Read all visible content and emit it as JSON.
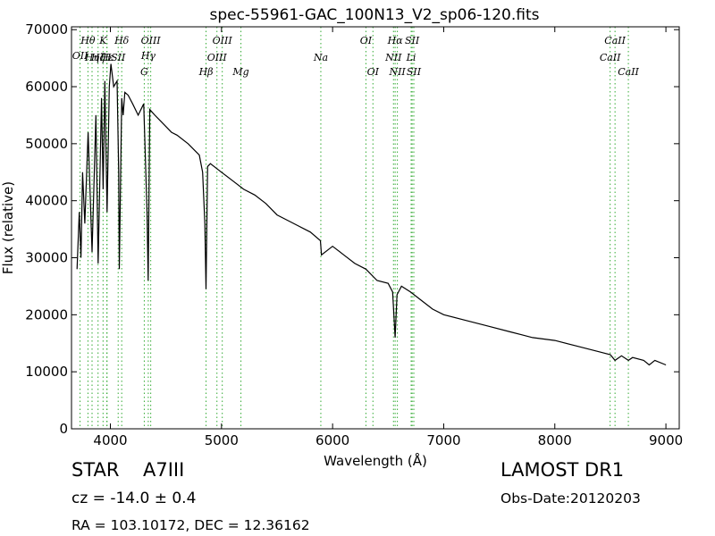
{
  "chart_data": {
    "type": "line",
    "title": "spec-55961-GAC_100N13_V2_sp06-120.fits",
    "xlabel": "Wavelength (Å)",
    "ylabel": "Flux (relative)",
    "xlim": [
      3650,
      9120
    ],
    "ylim": [
      0,
      70500
    ],
    "xticks": [
      4000,
      5000,
      6000,
      7000,
      8000,
      9000
    ],
    "yticks": [
      0,
      10000,
      20000,
      30000,
      40000,
      50000,
      60000,
      70000
    ],
    "grid": false,
    "line_color": "#000000",
    "marker_color": "#33aa33",
    "series": [
      {
        "x": [
          3700,
          3720,
          3735,
          3750,
          3770,
          3800,
          3835,
          3870,
          3890,
          3920,
          3935,
          3950,
          3970,
          3990,
          4005,
          4030,
          4060,
          4075,
          4080,
          4102,
          4115,
          4130,
          4160,
          4200,
          4250,
          4300,
          4330,
          4340,
          4355,
          4400,
          4450,
          4500,
          4550,
          4600,
          4700,
          4800,
          4830,
          4850,
          4861,
          4875,
          4900,
          5000,
          5100,
          5200,
          5300,
          5400,
          5500,
          5600,
          5700,
          5800,
          5890,
          5900,
          6000,
          6100,
          6200,
          6300,
          6400,
          6500,
          6540,
          6563,
          6580,
          6620,
          6700,
          6800,
          6900,
          7000,
          7200,
          7400,
          7600,
          7700,
          7800,
          8000,
          8200,
          8400,
          8500,
          8542,
          8600,
          8662,
          8700,
          8800,
          8850,
          8900,
          9000
        ],
        "y": [
          28000,
          38000,
          30000,
          45000,
          36000,
          52000,
          31000,
          55000,
          29000,
          58000,
          42000,
          61000,
          38000,
          60000,
          64000,
          60000,
          61000,
          45000,
          28000,
          58000,
          55000,
          59000,
          58500,
          57000,
          55000,
          57000,
          38000,
          26000,
          56000,
          55000,
          54000,
          53000,
          52000,
          51500,
          50000,
          48000,
          45000,
          36000,
          24500,
          46000,
          46500,
          45000,
          43500,
          42000,
          41000,
          39500,
          37500,
          36500,
          35500,
          34500,
          33000,
          30500,
          32000,
          30500,
          29000,
          28000,
          26000,
          25500,
          24000,
          16000,
          23500,
          25000,
          24000,
          22500,
          21000,
          20000,
          19000,
          18000,
          17000,
          16500,
          16000,
          15500,
          14500,
          13500,
          13000,
          12000,
          12800,
          12000,
          12500,
          12000,
          11200,
          12000,
          11200
        ]
      }
    ],
    "lines": [
      {
        "name": "OII",
        "x": 3727,
        "row": 2
      },
      {
        "name": "Hθ",
        "x": 3798,
        "row": 1
      },
      {
        "name": "Hη",
        "x": 3835,
        "row": 3
      },
      {
        "name": "Hζ",
        "x": 3889,
        "row": 3
      },
      {
        "name": "K",
        "x": 3934,
        "row": 1
      },
      {
        "name": "H",
        "x": 3968,
        "row": 3
      },
      {
        "name": "Hε",
        "x": 3970,
        "row": 3
      },
      {
        "name": "SII",
        "x": 4070,
        "row": 3
      },
      {
        "name": "Hδ",
        "x": 4102,
        "row": 1
      },
      {
        "name": "G",
        "x": 4305,
        "row": 4
      },
      {
        "name": "Hγ",
        "x": 4341,
        "row": 2
      },
      {
        "name": "OIII",
        "x": 4363,
        "row": 1
      },
      {
        "name": "Hβ",
        "x": 4861,
        "row": 4
      },
      {
        "name": "OIII",
        "x": 4959,
        "row": 3
      },
      {
        "name": "OIII",
        "x": 5007,
        "row": 1
      },
      {
        "name": "Mg",
        "x": 5175,
        "row": 4
      },
      {
        "name": "Na",
        "x": 5894,
        "row": 3
      },
      {
        "name": "OI",
        "x": 6300,
        "row": 1
      },
      {
        "name": "OI",
        "x": 6363,
        "row": 4
      },
      {
        "name": "NII",
        "x": 6548,
        "row": 3
      },
      {
        "name": "Hα",
        "x": 6563,
        "row": 1
      },
      {
        "name": "NII",
        "x": 6583,
        "row": 4
      },
      {
        "name": "Li",
        "x": 6707,
        "row": 3
      },
      {
        "name": "SII",
        "x": 6716,
        "row": 1
      },
      {
        "name": "SII",
        "x": 6731,
        "row": 4
      },
      {
        "name": "CaII",
        "x": 8498,
        "row": 3
      },
      {
        "name": "CaII",
        "x": 8542,
        "row": 1
      },
      {
        "name": "CaII",
        "x": 8662,
        "row": 4
      }
    ]
  },
  "info": {
    "class_label": "STAR",
    "subclass": "A7III",
    "redshift": "cz = -14.0 ± 0.4",
    "coords": "RA = 103.10172, DEC = 12.36162",
    "survey": "LAMOST DR1",
    "obs_date": "Obs-Date:20120203"
  }
}
